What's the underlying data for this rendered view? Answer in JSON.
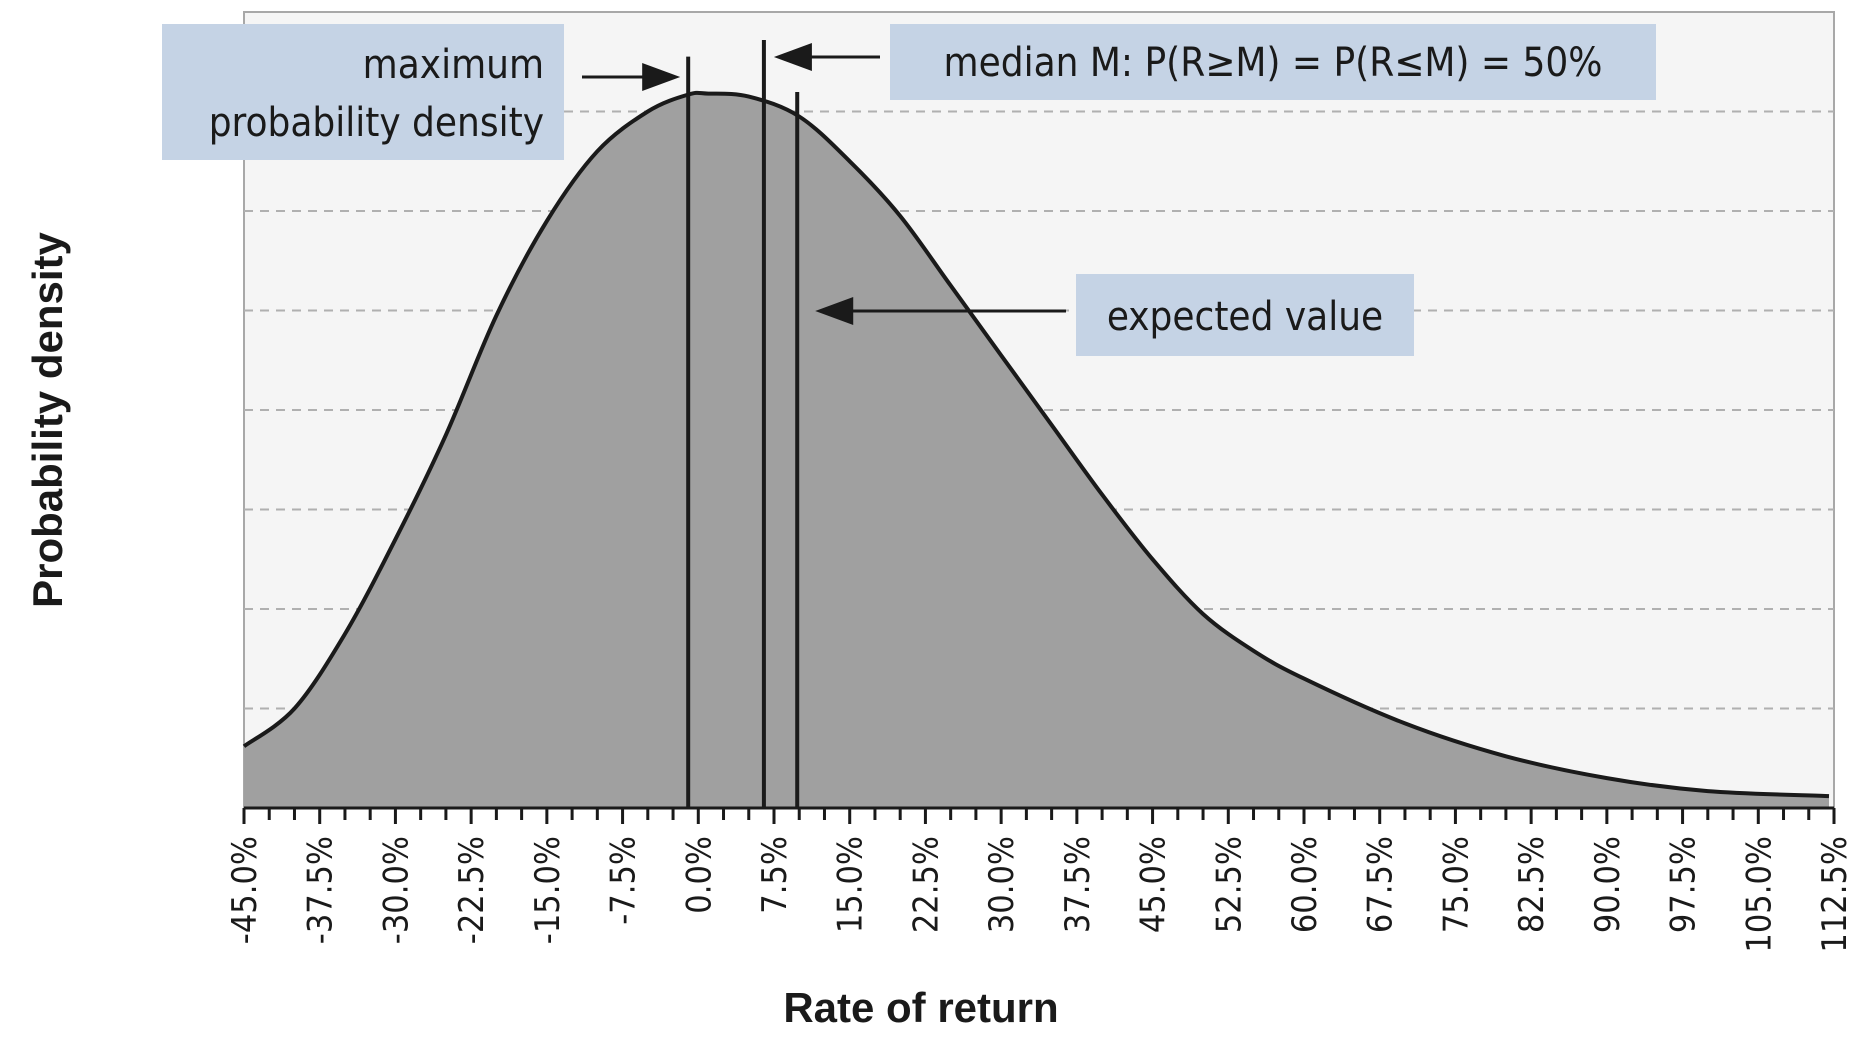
{
  "chart_data": {
    "type": "area",
    "xlabel": "Rate of return",
    "ylabel": "Probability density",
    "xlim": [
      -45,
      112.5
    ],
    "ylim": [
      0,
      8
    ],
    "tick_values": [
      -45,
      -37.5,
      -30,
      -22.5,
      -15,
      -7.5,
      0,
      7.5,
      15,
      22.5,
      30,
      37.5,
      45,
      52.5,
      60,
      67.5,
      75,
      82.5,
      90,
      97.5,
      105,
      112.5
    ],
    "tick_labels": [
      "-45.0%",
      "-37.5%",
      "-30.0%",
      "-22.5%",
      "-15.0%",
      "-7.5%",
      "0.0%",
      "7.5%",
      "15.0%",
      "22.5%",
      "30.0%",
      "37.5%",
      "45.0%",
      "52.5%",
      "60.0%",
      "67.5%",
      "75.0%",
      "82.5%",
      "90.0%",
      "97.5%",
      "105.0%",
      "112.5%"
    ],
    "gridlines_y": [
      1,
      2,
      3,
      4,
      5,
      6,
      7
    ],
    "grid": "dashed-horizontal",
    "curve": {
      "x": [
        -45,
        -40,
        -35,
        -30,
        -25,
        -20,
        -15,
        -10,
        -5,
        -1,
        1,
        5,
        10,
        15,
        20,
        25,
        30,
        35,
        40,
        45,
        50,
        55,
        60,
        70,
        80,
        90,
        100,
        112
      ],
      "y": [
        0.62,
        1.0,
        1.75,
        2.7,
        3.75,
        4.95,
        5.9,
        6.6,
        7.0,
        7.17,
        7.18,
        7.15,
        6.95,
        6.5,
        5.95,
        5.25,
        4.55,
        3.85,
        3.15,
        2.5,
        1.95,
        1.58,
        1.3,
        0.85,
        0.52,
        0.3,
        0.17,
        0.12
      ]
    },
    "markers": [
      {
        "id": "mode",
        "x": -1.0
      },
      {
        "id": "median",
        "x": 6.5
      },
      {
        "id": "expected",
        "x": 9.8
      }
    ],
    "annotations": [
      {
        "id": "mode",
        "lines": [
          "maximum",
          "probability density"
        ]
      },
      {
        "id": "median",
        "lines": [
          "median M: P(R≥M) = P(R≤M) = 50%"
        ]
      },
      {
        "id": "expected",
        "lines": [
          "expected value"
        ]
      }
    ],
    "colors": {
      "area_fill": "#a0a0a0",
      "curve": "#1a1a1a",
      "plot_bg": "#f5f5f5",
      "grid": "#b0b0b0",
      "annotation_box": "#c5d3e5",
      "frame": "#a8a8a8"
    }
  }
}
